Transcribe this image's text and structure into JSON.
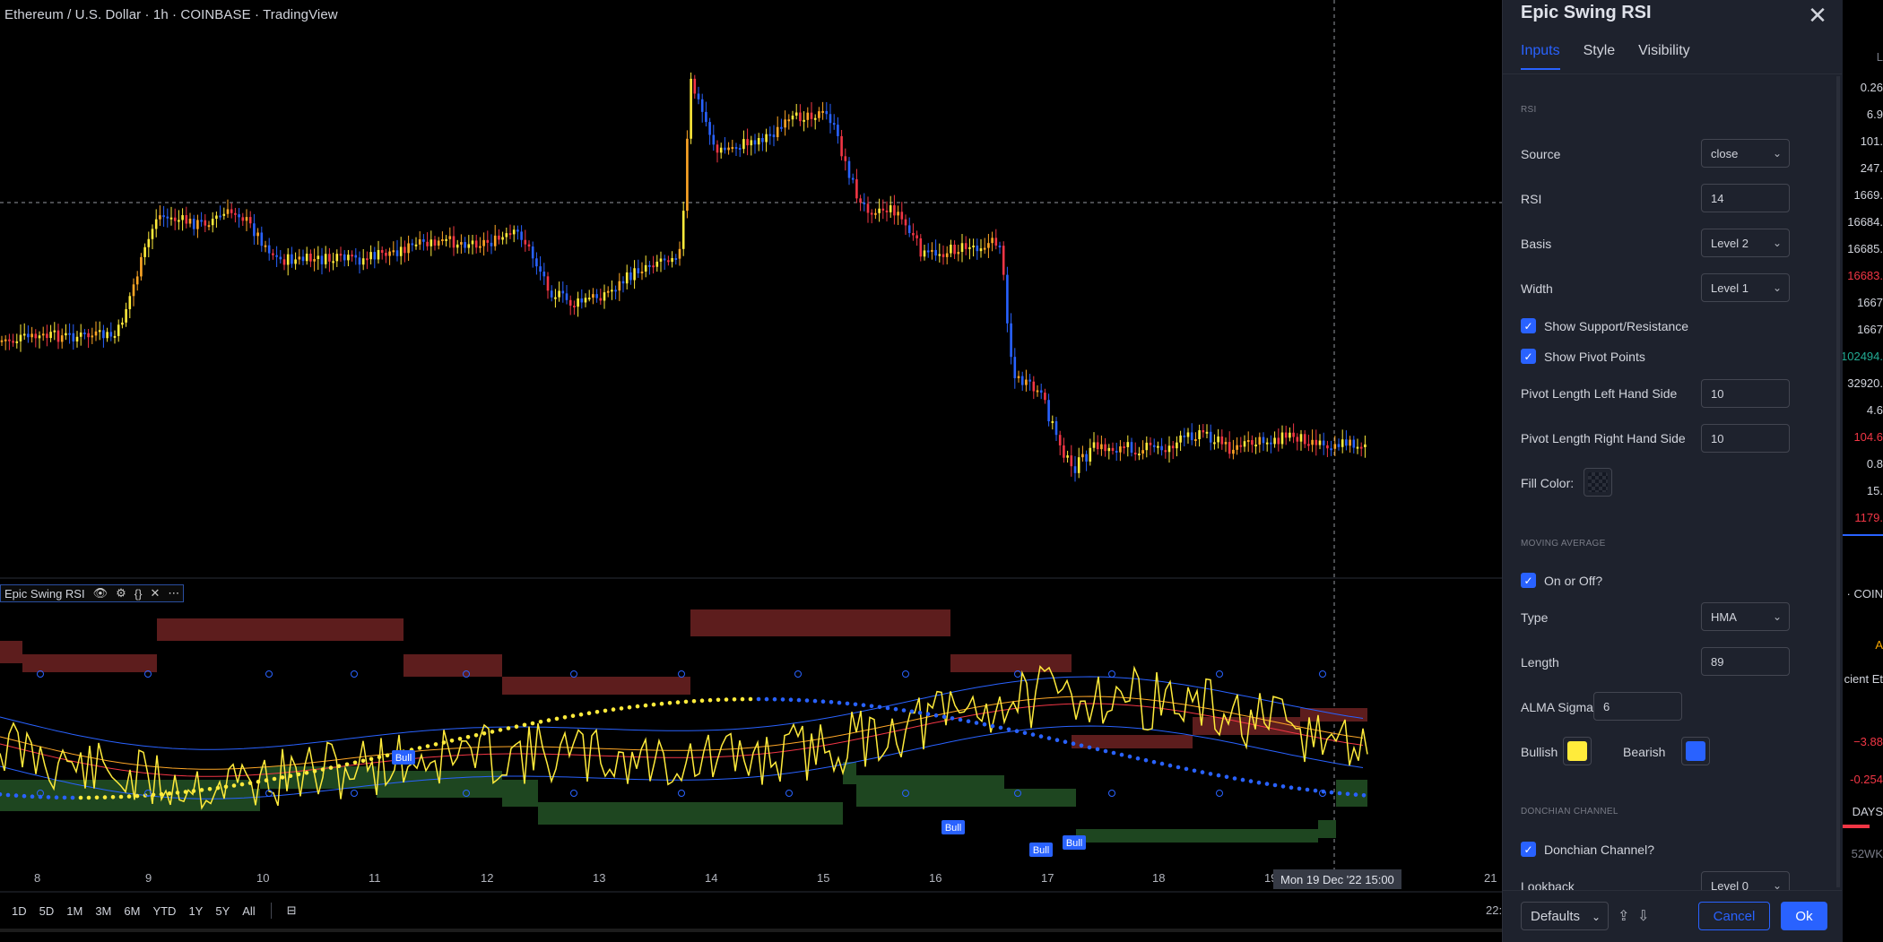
{
  "header": {
    "title": "Ethereum / U.S. Dollar · 1h · COINBASE · TradingView"
  },
  "indicator_legend": {
    "name": "Epic Swing RSI"
  },
  "x_axis": {
    "labels": [
      "8",
      "9",
      "10",
      "11",
      "12",
      "13",
      "14",
      "15",
      "16",
      "17",
      "18",
      "19",
      "21"
    ]
  },
  "crosshair": {
    "label": "Mon 19 Dec '22   15:00"
  },
  "signal_labels": [
    "Bull",
    "Bull",
    "Bull",
    "Bull"
  ],
  "bottom_bar": {
    "ranges": [
      "1D",
      "5D",
      "1M",
      "3M",
      "6M",
      "YTD",
      "1Y",
      "5Y",
      "All"
    ],
    "time": "22:"
  },
  "right_panel": {
    "values": [
      "L",
      "0.26",
      "6.9",
      "101.",
      "247.",
      "1669.",
      "16684.",
      "16685.",
      "16683.",
      "1667",
      "1667",
      "102494.",
      "32920.",
      "4.6",
      "104.6",
      "0.8",
      "15.",
      "1179.",
      "· COIN",
      "A",
      "cient Et",
      "−3.88",
      "-0.254",
      "DAYS",
      "52WK"
    ],
    "colors": [
      "#787b86",
      "#d1d4dc",
      "#d1d4dc",
      "#d1d4dc",
      "#d1d4dc",
      "#d1d4dc",
      "#d1d4dc",
      "#d1d4dc",
      "#f23645",
      "#d1d4dc",
      "#d1d4dc",
      "#22ab94",
      "#d1d4dc",
      "#d1d4dc",
      "#f23645",
      "#d1d4dc",
      "#d1d4dc",
      "#f23645",
      "#d1d4dc",
      "#f7a600",
      "#d1d4dc",
      "#f23645",
      "#f23645",
      "#d1d4dc",
      "#787b86"
    ]
  },
  "dialog": {
    "title": "Epic Swing RSI",
    "tabs": [
      "Inputs",
      "Style",
      "Visibility"
    ],
    "sections": {
      "rsi": "RSI",
      "ma": "MOVING AVERAGE",
      "donchian": "DONCHIAN CHANNEL"
    },
    "fields": {
      "source_label": "Source",
      "source_value": "close",
      "rsi_label": "RSI",
      "rsi_value": "14",
      "basis_label": "Basis",
      "basis_value": "Level 2",
      "width_label": "Width",
      "width_value": "Level 1",
      "show_sr_label": "Show Support/Resistance",
      "show_pivot_label": "Show Pivot Points",
      "pivot_left_label": "Pivot Length Left Hand Side",
      "pivot_left_value": "10",
      "pivot_right_label": "Pivot Length Right Hand Side",
      "pivot_right_value": "10",
      "fill_color_label": "Fill Color:",
      "on_off_label": "On or Off?",
      "type_label": "Type",
      "type_value": "HMA",
      "length_label": "Length",
      "length_value": "89",
      "alma_label": "ALMA Sigma",
      "alma_value": "6",
      "bullish_label": "Bullish",
      "bearish_label": "Bearish",
      "donchian_label": "Donchian Channel?",
      "lookback_label": "Lookback",
      "lookback_value": "Level 0"
    },
    "colors": {
      "bullish": "#ffeb3b",
      "bearish": "#2962ff",
      "accent": "#2962ff"
    },
    "footer": {
      "defaults": "Defaults",
      "cancel": "Cancel",
      "ok": "Ok"
    }
  }
}
